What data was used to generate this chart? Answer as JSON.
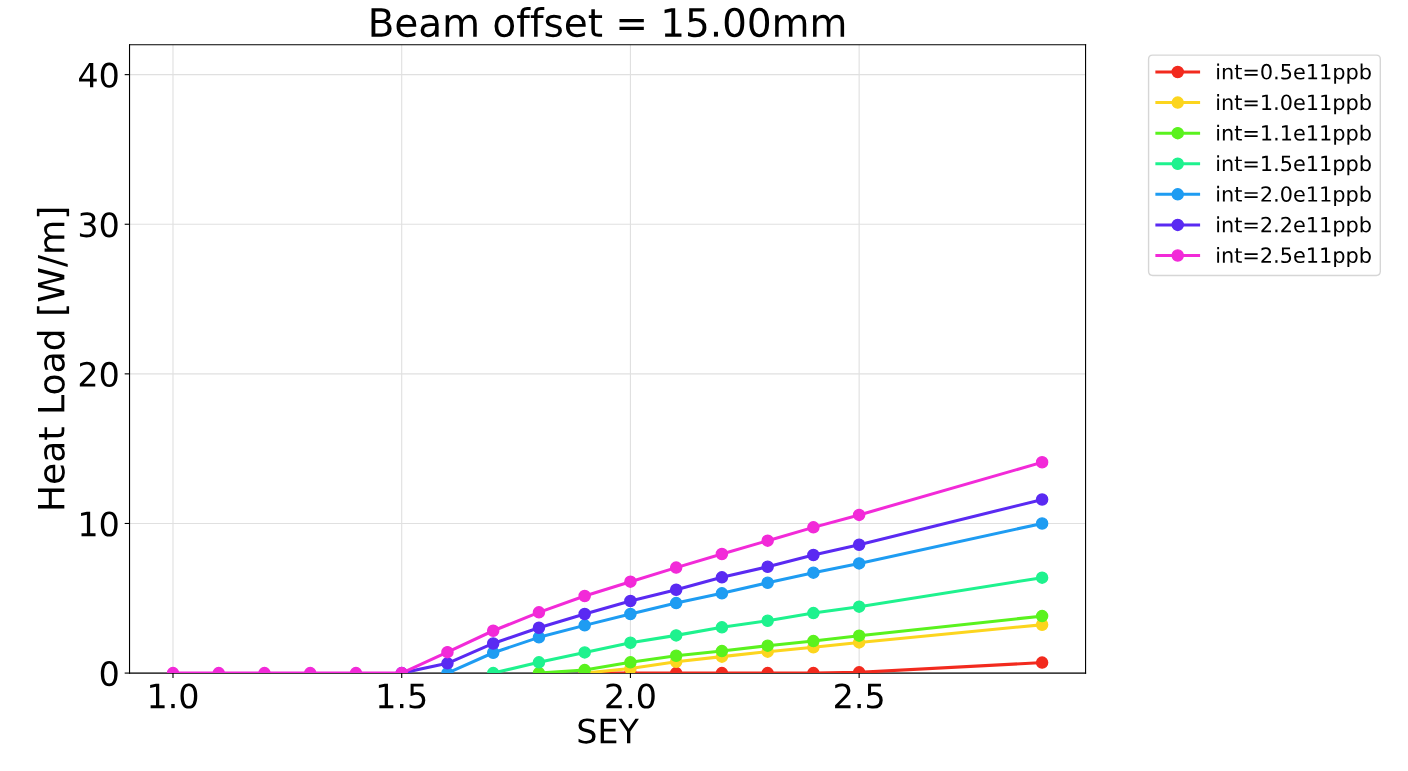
{
  "chart_data": {
    "type": "line",
    "title": "Beam offset = 15.00mm",
    "xlabel": "SEY",
    "ylabel": "Heat Load [W/m]",
    "x": [
      1.0,
      1.1,
      1.2,
      1.3,
      1.4,
      1.5,
      1.6,
      1.7,
      1.8,
      1.9,
      2.0,
      2.1,
      2.2,
      2.3,
      2.4,
      2.5,
      2.9
    ],
    "series": [
      {
        "name": "int=0.5e11ppb",
        "color": "#f22a1e",
        "values": [
          null,
          null,
          null,
          null,
          null,
          null,
          null,
          null,
          null,
          0,
          0,
          0,
          0,
          0,
          0,
          0.05,
          0.7
        ]
      },
      {
        "name": "int=1.0e11ppb",
        "color": "#fcd51e",
        "values": [
          null,
          null,
          null,
          null,
          null,
          null,
          null,
          null,
          null,
          0,
          0.3,
          0.76,
          1.1,
          1.43,
          1.72,
          2.05,
          3.23
        ]
      },
      {
        "name": "int=1.1e11ppb",
        "color": "#5af21e",
        "values": [
          null,
          null,
          null,
          null,
          null,
          null,
          null,
          null,
          0,
          0.2,
          0.72,
          1.16,
          1.47,
          1.83,
          2.14,
          2.5,
          3.81
        ]
      },
      {
        "name": "int=1.5e11ppb",
        "color": "#1ef28e",
        "values": [
          null,
          null,
          null,
          null,
          null,
          null,
          null,
          0,
          0.72,
          1.38,
          2.03,
          2.52,
          3.06,
          3.5,
          4.01,
          4.44,
          6.38
        ]
      },
      {
        "name": "int=2.0e11ppb",
        "color": "#1e9cf2",
        "values": [
          null,
          null,
          null,
          null,
          null,
          null,
          0,
          1.36,
          2.39,
          3.19,
          3.95,
          4.68,
          5.33,
          6.04,
          6.71,
          7.33,
          10.0
        ]
      },
      {
        "name": "int=2.2e11ppb",
        "color": "#5a2af2",
        "values": [
          null,
          null,
          null,
          null,
          null,
          0,
          0.65,
          1.98,
          3.03,
          3.95,
          4.82,
          5.57,
          6.4,
          7.11,
          7.89,
          8.58,
          11.6
        ]
      },
      {
        "name": "int=2.5e11ppb",
        "color": "#f22ad8",
        "values": [
          0,
          0,
          0,
          0,
          0,
          0,
          1.4,
          2.83,
          4.06,
          5.15,
          6.11,
          7.05,
          7.96,
          8.85,
          9.74,
          10.57,
          14.09
        ]
      }
    ],
    "xlim": [
      0.905,
      2.995
    ],
    "ylim": [
      0,
      42
    ],
    "xticks": [
      {
        "value": 1,
        "label": "1.0"
      },
      1.5,
      {
        "value": 2,
        "label": "2.0"
      },
      2.5
    ],
    "yticks": [
      0,
      10,
      20,
      30,
      40
    ],
    "grid": true,
    "legend": "top right",
    "marker": "circle",
    "line_style": "solid"
  }
}
